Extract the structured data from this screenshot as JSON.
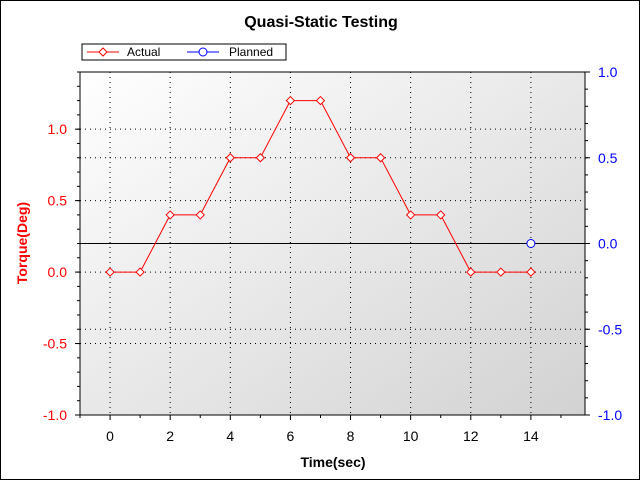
{
  "chart_data": {
    "type": "line",
    "title": "Quasi-Static Testing",
    "xlabel": "Time(sec)",
    "ylabel_left": "Torque(Deg)",
    "ylabel_right": "",
    "xlim": [
      -1,
      15.8
    ],
    "ylim_left": [
      -1.0,
      1.4
    ],
    "ylim_right": [
      -1.0,
      1.0
    ],
    "x_ticks": [
      0,
      2,
      4,
      6,
      8,
      10,
      12,
      14
    ],
    "x_tick_labels": [
      "0",
      "2",
      "4",
      "6",
      "8",
      "10",
      "12",
      "14"
    ],
    "y_left_ticks": [
      -1.0,
      -0.5,
      0.0,
      0.5,
      1.0
    ],
    "y_left_tick_labels": [
      "-1.0",
      "-0.5",
      "0.0",
      "0.5",
      "1.0"
    ],
    "y_right_ticks": [
      -1.0,
      -0.5,
      0.0,
      0.5,
      1.0
    ],
    "y_right_tick_labels": [
      "-1.0",
      "-0.5",
      "0.0",
      "0.5",
      "1.0"
    ],
    "grid": true,
    "legend_position": "top-left",
    "series": [
      {
        "name": "Actual",
        "axis": "left",
        "color": "#ff0000",
        "marker": "diamond",
        "x": [
          0,
          1,
          2,
          3,
          4,
          5,
          6,
          7,
          8,
          9,
          10,
          11,
          12,
          13,
          14
        ],
        "values": [
          0.0,
          0.0,
          0.4,
          0.4,
          0.8,
          0.8,
          1.2,
          1.2,
          0.8,
          0.8,
          0.4,
          0.4,
          0.0,
          0.0,
          0.0
        ]
      },
      {
        "name": "Planned",
        "axis": "right",
        "color": "#0000ff",
        "marker": "circle",
        "x": [
          14
        ],
        "values": [
          0.0
        ]
      }
    ],
    "colors": {
      "left_axis_labels": "#ff0000",
      "right_axis_labels": "#0000ff",
      "zero_line": "#000000"
    }
  }
}
